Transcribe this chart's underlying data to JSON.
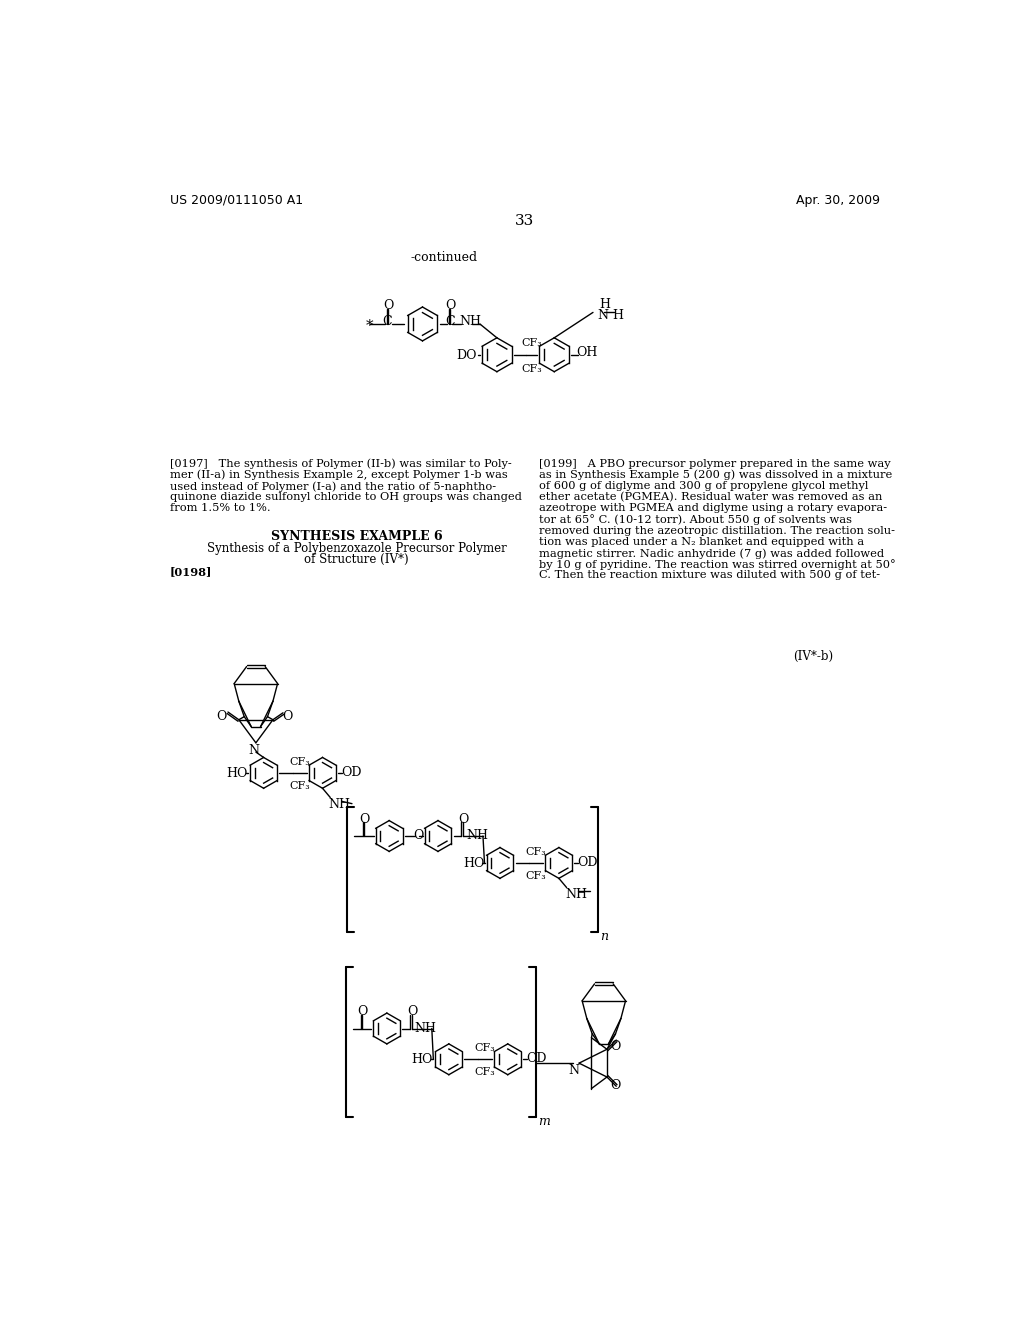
{
  "background_color": "#ffffff",
  "header_left": "US 2009/0111050 A1",
  "header_right": "Apr. 30, 2009",
  "page_number": "33",
  "continued_label": "-continued",
  "label_IVb": "(IV*-b)",
  "text_color": "#000000",
  "line_color": "#000000"
}
